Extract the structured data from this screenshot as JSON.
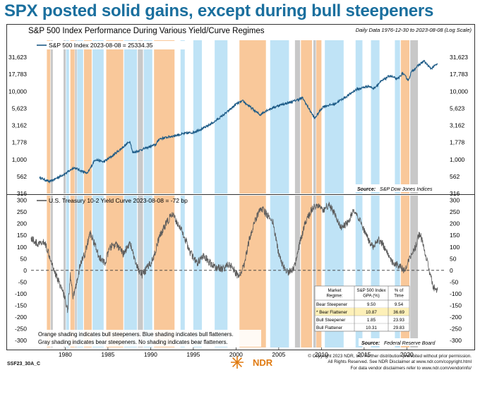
{
  "headline": "SPX posted solid gains, except during bull steepeners",
  "subtitle_main": "S&P 500 Index Performance During Various Yield/Curve Regimes",
  "daily_data": "Daily Data 1976-12-30 to 2023-08-08 (Log Scale)",
  "chart_data": [
    {
      "type": "line",
      "title": "S&P 500 Index Performance During Various Yield/Curve Regimes",
      "legend": "S&P 500 Index 2023-08-08 = 25334.35",
      "scale": "log",
      "ylim": [
        316,
        56234
      ],
      "yticks": [
        316,
        562,
        1000,
        1778,
        3162,
        5623,
        10000,
        17783,
        31623
      ],
      "ytick_labels": [
        "316",
        "562",
        "1,000",
        "1,778",
        "3,162",
        "5,623",
        "10,000",
        "17,783",
        "31,623"
      ],
      "source": "Source:",
      "source_name": "S&P Dow Jones Indices",
      "x": [
        1977.0,
        1978.2,
        1980.2,
        1981.0,
        1982.6,
        1983.5,
        1984.5,
        1985.5,
        1987.6,
        1987.9,
        1990.6,
        1991.0,
        1994.0,
        1995.0,
        1996.5,
        1997.5,
        1999.0,
        2000.0,
        2000.8,
        2002.8,
        2003.5,
        2005.0,
        2006.5,
        2007.8,
        2009.2,
        2010.2,
        2011.5,
        2013.0,
        2014.0,
        2015.5,
        2016.1,
        2017.0,
        2018.0,
        2018.9,
        2019.5,
        2020.2,
        2020.5,
        2021.0,
        2022.0,
        2022.8,
        2023.6
      ],
      "values": [
        540,
        470,
        640,
        760,
        620,
        1000,
        920,
        1120,
        1850,
        1250,
        1650,
        2000,
        2400,
        2500,
        3000,
        3600,
        5000,
        6500,
        7200,
        4500,
        5200,
        6200,
        7000,
        8000,
        4000,
        6000,
        6500,
        8500,
        10500,
        12000,
        11000,
        14000,
        17000,
        15000,
        18500,
        14500,
        19000,
        22000,
        28000,
        21500,
        25334
      ]
    },
    {
      "type": "line",
      "legend": "U.S. Treasury 10-2 Yield Curve 2023-08-08 = -72 bp",
      "ylim": [
        -330,
        320
      ],
      "yticks": [
        -300,
        -250,
        -200,
        -150,
        -100,
        -50,
        0,
        50,
        100,
        150,
        200,
        250,
        300
      ],
      "ytick_labels": [
        "-300",
        "-250",
        "-200",
        "-150",
        "-100",
        "-50",
        "0",
        "50",
        "100",
        "150",
        "200",
        "250",
        "300"
      ],
      "xlim": [
        1976.0,
        2024.6
      ],
      "xticks": [
        1980,
        1985,
        1990,
        1995,
        2000,
        2005,
        2010,
        2015,
        2020
      ],
      "xtick_labels": [
        "1980",
        "1985",
        "1990",
        "1995",
        "2000",
        "2005",
        "2010",
        "2015",
        "2020"
      ],
      "zero_line": 0,
      "source": "Source:",
      "source_name": "Federal Reserve Board",
      "x": [
        1976.0,
        1976.8,
        1977.6,
        1978.4,
        1978.9,
        1979.3,
        1979.9,
        1980.3,
        1980.6,
        1980.9,
        1981.3,
        1981.8,
        1982.3,
        1982.9,
        1983.4,
        1983.9,
        1984.6,
        1985.3,
        1986.0,
        1986.8,
        1987.6,
        1988.3,
        1989.0,
        1989.6,
        1990.3,
        1991.0,
        1991.8,
        1992.5,
        1993.2,
        1993.9,
        1994.6,
        1995.4,
        1996.2,
        1997.0,
        1997.8,
        1998.6,
        1999.2,
        1999.8,
        2000.3,
        2000.9,
        2001.6,
        2002.3,
        2002.9,
        2003.6,
        2004.3,
        2005.0,
        2005.6,
        2006.2,
        2006.9,
        2007.5,
        2008.1,
        2008.8,
        2009.5,
        2010.2,
        2010.9,
        2011.6,
        2012.3,
        2013.0,
        2013.7,
        2014.4,
        2015.2,
        2016.0,
        2016.8,
        2017.6,
        2018.4,
        2019.1,
        2019.7,
        2020.3,
        2020.9,
        2021.5,
        2022.0,
        2022.5,
        2023.0,
        2023.4,
        2023.6
      ],
      "values": [
        140,
        110,
        120,
        40,
        -20,
        -50,
        -110,
        -170,
        -20,
        -120,
        -60,
        30,
        70,
        160,
        120,
        60,
        30,
        100,
        110,
        70,
        120,
        20,
        -20,
        10,
        50,
        140,
        200,
        240,
        200,
        150,
        80,
        30,
        60,
        30,
        10,
        10,
        30,
        0,
        -30,
        20,
        140,
        220,
        270,
        240,
        210,
        70,
        10,
        -10,
        20,
        120,
        200,
        260,
        280,
        260,
        280,
        240,
        180,
        200,
        250,
        220,
        150,
        100,
        130,
        90,
        30,
        20,
        0,
        50,
        90,
        160,
        100,
        20,
        -60,
        -90,
        -72
      ]
    }
  ],
  "regimes": {
    "bull_steepener": [
      [
        1977.85,
        1978.25
      ],
      [
        1980.6,
        1981.1
      ],
      [
        1982.2,
        1983.1
      ],
      [
        1984.8,
        1986.8
      ],
      [
        1990.4,
        1992.8
      ],
      [
        2000.4,
        2003.5
      ],
      [
        2007.6,
        2008.9
      ],
      [
        2009.4,
        2010.0
      ],
      [
        2019.3,
        2020.3
      ]
    ],
    "bull_flattener": [
      [
        1980.1,
        1980.45
      ],
      [
        1981.4,
        1982.1
      ],
      [
        1983.2,
        1984.5
      ],
      [
        1986.9,
        1988.4
      ],
      [
        1989.2,
        1990.2
      ],
      [
        1993.5,
        1994.0
      ],
      [
        1995.0,
        1996.0
      ],
      [
        1997.5,
        1999.0
      ],
      [
        2004.0,
        2006.2
      ],
      [
        2010.4,
        2012.6
      ],
      [
        2014.0,
        2014.8
      ],
      [
        2015.8,
        2016.8
      ],
      [
        2018.6,
        2019.2
      ]
    ],
    "bear_steepener": [
      [
        1978.3,
        1978.55
      ],
      [
        1979.8,
        1980.05
      ],
      [
        1981.15,
        1981.35
      ],
      [
        1988.5,
        1989.1
      ],
      [
        2006.9,
        2007.5
      ],
      [
        2009.05,
        2009.35
      ],
      [
        2020.4,
        2021.3
      ]
    ]
  },
  "table": {
    "headers": [
      "Market Regime:",
      "S&P 500 Index GPA (%)",
      "% of Time"
    ],
    "rows": [
      {
        "regime": "Bear Steepener",
        "gpa": "9.50",
        "time": "9.54",
        "highlight": false
      },
      {
        "regime": "* Bear Flattener",
        "gpa": "10.87",
        "time": "36.69",
        "highlight": true
      },
      {
        "regime": "Bull Steepener",
        "gpa": "1.85",
        "time": "23.93",
        "highlight": false
      },
      {
        "regime": "Bull Flattener",
        "gpa": "10.31",
        "time": "29.83",
        "highlight": false
      }
    ]
  },
  "note_line1": "Orange shading indicates bull steepeners. Blue shading indicates bull flatteners.",
  "note_line2": "Gray shading indicates bear steepeners. No shading indicates bear flatteners.",
  "footer_code": "SSF23_30A_C",
  "logo_text": "NDR",
  "copyright1": "© Copyright 2023 NDR, Inc. Further distribution prohibited without prior permission.",
  "copyright2": "All Rights Reserved. See NDR Disclaimer at www.ndr.com/copyright.html",
  "copyright3": "For data vendor disclaimers refer to www.ndr.com/vendorinfo/",
  "colors": {
    "headline": "#1a6f9e",
    "spx_line": "#1c5a86",
    "curve_line": "#5a5a5a",
    "orange": "#f9c89a",
    "blue": "#bfe3f6",
    "gray": "#c8c8c8",
    "highlight": "#fdf0b8",
    "logo": "#e07a10"
  }
}
